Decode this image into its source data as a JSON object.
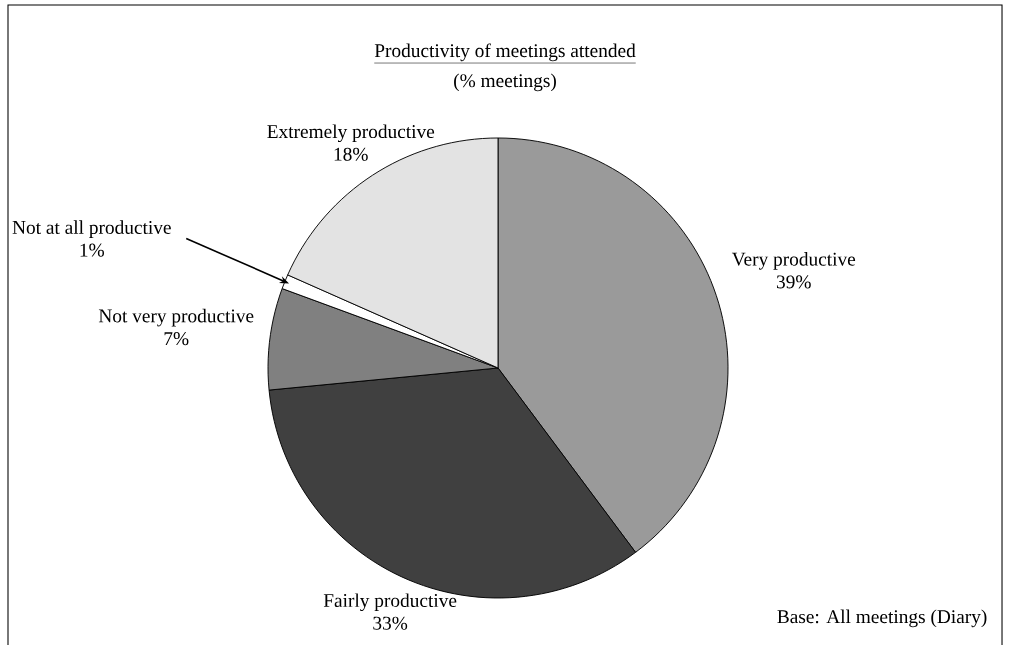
{
  "chart_data": {
    "type": "pie",
    "title": "Productivity of meetings attended",
    "subtitle": "(% meetings)",
    "categories": [
      "Very productive",
      "Fairly productive",
      "Not very productive",
      "Not at all productive",
      "Extremely productive"
    ],
    "values": [
      39,
      33,
      7,
      1,
      18
    ],
    "value_labels": [
      "39%",
      "33%",
      "7%",
      "1%",
      "18%"
    ],
    "colors": [
      "#9a9a9a",
      "#404040",
      "#808080",
      "#ffffff",
      "#e3e3e3"
    ],
    "annotations": [
      "Base: All meetings (Diary)"
    ]
  }
}
